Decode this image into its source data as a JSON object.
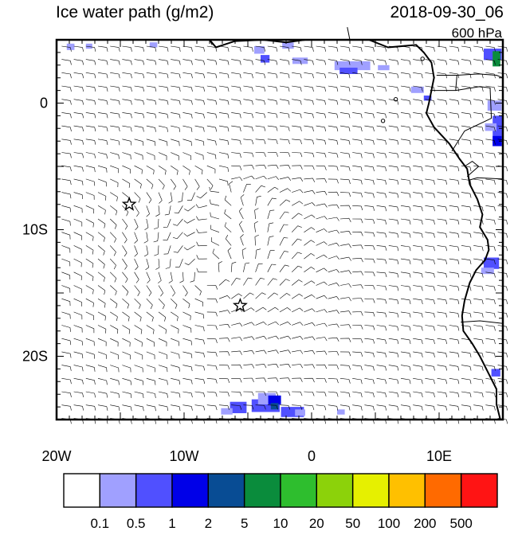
{
  "title": "Ice water path (g/m2)",
  "datetime": "2018-09-30_06",
  "level": "600 hPa",
  "map": {
    "lon_range": [
      -20,
      15
    ],
    "lat_range": [
      -25,
      5
    ],
    "x_ticks": [
      {
        "lon": -20,
        "label": "20W"
      },
      {
        "lon": -10,
        "label": "10W"
      },
      {
        "lon": 0,
        "label": "0"
      },
      {
        "lon": 10,
        "label": "10E"
      }
    ],
    "y_ticks": [
      {
        "lat": 0,
        "label": "0"
      },
      {
        "lat": -10,
        "label": "10S"
      },
      {
        "lat": -20,
        "label": "20S"
      }
    ],
    "markers": [
      {
        "type": "star",
        "lon": -14.3,
        "lat": -8.0
      },
      {
        "type": "star",
        "lon": -5.6,
        "lat": -16.0
      }
    ]
  },
  "colorbar": {
    "colors": [
      "#ffffff",
      "#a0a0ff",
      "#5050ff",
      "#0000e8",
      "#084c94",
      "#0a8c3c",
      "#2ebe2e",
      "#8cd20a",
      "#e6f000",
      "#ffc000",
      "#ff6a00",
      "#ff1414"
    ],
    "labels": [
      "0.1",
      "0.5",
      "1",
      "2",
      "5",
      "10",
      "20",
      "50",
      "100",
      "200",
      "500"
    ]
  }
}
